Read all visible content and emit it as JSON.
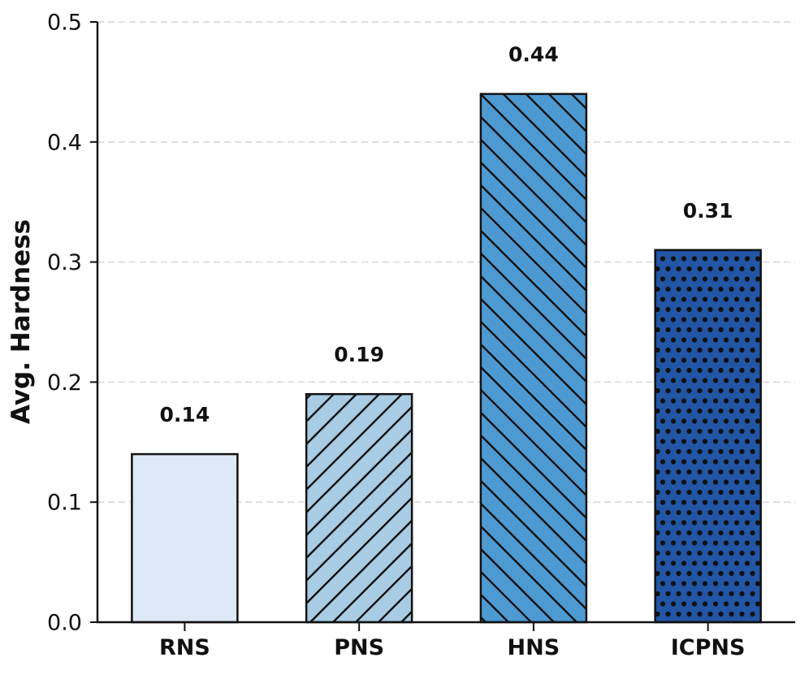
{
  "chart_data": {
    "type": "bar",
    "title": "",
    "xlabel": "",
    "ylabel": "Avg. Hardness",
    "categories": [
      "RNS",
      "PNS",
      "HNS",
      "ICPNS"
    ],
    "values": [
      0.14,
      0.19,
      0.44,
      0.31
    ],
    "value_labels": [
      "0.14",
      "0.19",
      "0.44",
      "0.31"
    ],
    "bar_colors": [
      "#dde9f6",
      "#a8cce4",
      "#4d9ad3",
      "#2255a5"
    ],
    "bar_hatches": [
      "none",
      "forward-diagonal",
      "back-diagonal",
      "dots"
    ],
    "edge_color": "#111111",
    "ylim": [
      0,
      0.5
    ],
    "ytick_values": [
      0,
      0.1,
      0.2,
      0.3,
      0.4,
      0.5
    ],
    "ytick_labels": [
      "0.0",
      "0.1",
      "0.2",
      "0.3",
      "0.4",
      "0.5"
    ],
    "grid": "horizontal-dashed",
    "grid_color": "#dcdcdc",
    "legend": "none",
    "background": "#ffffff"
  }
}
